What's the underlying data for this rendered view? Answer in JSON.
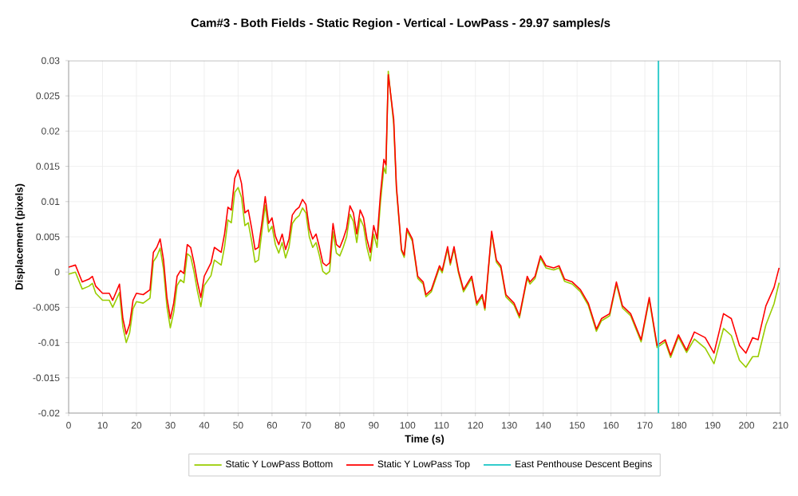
{
  "chart_data": {
    "type": "line",
    "title": "Cam#3 - Both Fields - Static Region - Vertical - LowPass - 29.97 samples/s",
    "xlabel": "Time (s)",
    "ylabel": "Displacement (pixels)",
    "x": [
      0,
      2,
      3,
      4,
      6,
      7,
      8,
      10,
      12,
      13,
      15,
      16,
      17,
      18,
      19,
      20,
      22,
      24,
      25,
      26,
      27,
      28,
      29,
      30,
      31,
      32,
      33,
      34,
      35,
      36,
      37,
      38,
      39,
      40,
      42,
      43,
      45,
      46,
      47,
      48,
      49,
      50,
      51,
      52,
      53,
      54,
      55,
      56,
      57,
      58,
      59,
      60,
      61,
      62,
      63,
      64,
      65,
      66,
      67,
      68,
      69,
      70,
      71,
      72,
      73,
      74,
      75,
      76,
      77,
      78,
      79,
      80,
      81,
      82,
      83,
      84,
      85,
      86,
      87,
      88,
      89,
      90,
      91,
      92,
      93,
      93.6,
      94.3,
      95.9,
      96.7,
      98.2,
      99,
      99.8,
      101.4,
      103,
      104.6,
      105.4,
      107,
      109.4,
      110.2,
      111.8,
      112.6,
      113.7,
      115,
      116.5,
      118.9,
      120.4,
      122,
      122.8,
      124.8,
      126.2,
      127.5,
      129,
      131.4,
      133,
      135.3,
      136.1,
      137.6,
      139.2,
      140.8,
      143.1,
      144.7,
      146.3,
      148.6,
      151,
      153.3,
      155.7,
      157.2,
      159.6,
      161.6,
      163.4,
      165.8,
      168.9,
      171.3,
      173.6,
      176,
      177.6,
      179.9,
      182.3,
      184.6,
      187.8,
      190.4,
      193.2,
      195.5,
      197.9,
      199.8,
      201.8,
      203.4,
      205.7,
      208.1,
      209.6
    ],
    "series": [
      {
        "name": "Static Y LowPass Bottom",
        "color": "#99cc00",
        "values": [
          -0.0003,
          0,
          -0.0012,
          -0.0024,
          -0.002,
          -0.0016,
          -0.003,
          -0.004,
          -0.004,
          -0.005,
          -0.0029,
          -0.0078,
          -0.01,
          -0.0086,
          -0.0052,
          -0.0042,
          -0.0044,
          -0.0037,
          0.0015,
          0.0022,
          0.0034,
          0.0004,
          -0.0049,
          -0.0079,
          -0.0057,
          -0.0019,
          -0.0011,
          -0.0015,
          0.0026,
          0.0022,
          0,
          -0.0027,
          -0.0049,
          -0.0019,
          -0.0005,
          0.0017,
          0.001,
          0.0036,
          0.0074,
          0.007,
          0.0113,
          0.012,
          0.0106,
          0.0066,
          0.007,
          0.0044,
          0.0014,
          0.0017,
          0.0057,
          0.0095,
          0.0057,
          0.0065,
          0.0039,
          0.0027,
          0.0042,
          0.002,
          0.0035,
          0.0069,
          0.0076,
          0.008,
          0.0091,
          0.0084,
          0.005,
          0.0035,
          0.0042,
          0.0023,
          0.0001,
          -0.0003,
          0.0001,
          0.0057,
          0.0027,
          0.0023,
          0.0035,
          0.005,
          0.0082,
          0.0072,
          0.0042,
          0.0076,
          0.0065,
          0.0035,
          0.0016,
          0.0054,
          0.0035,
          0.0099,
          0.0148,
          0.014,
          0.0285,
          0.021,
          0.0118,
          0.003,
          0.0021,
          0.0059,
          0.0044,
          -0.0009,
          -0.0017,
          -0.0035,
          -0.0028,
          0.0006,
          -0.0001,
          0.0033,
          0.001,
          0.0033,
          -0.0001,
          -0.0028,
          -0.0009,
          -0.0047,
          -0.0035,
          -0.0054,
          0.0055,
          0.0014,
          0.0006,
          -0.0035,
          -0.0047,
          -0.0065,
          -0.0009,
          -0.0017,
          -0.0009,
          0.002,
          0.0006,
          0.0003,
          0.0006,
          -0.0013,
          -0.0017,
          -0.0028,
          -0.0047,
          -0.0084,
          -0.0069,
          -0.0062,
          -0.0017,
          -0.0051,
          -0.0062,
          -0.0099,
          -0.0039,
          -0.0107,
          -0.0099,
          -0.0121,
          -0.0092,
          -0.0114,
          -0.0095,
          -0.0108,
          -0.013,
          -0.008,
          -0.009,
          -0.0125,
          -0.0135,
          -0.012,
          -0.012,
          -0.0075,
          -0.0045,
          -0.0015
        ]
      },
      {
        "name": "Static Y LowPass Top",
        "color": "#ff0000",
        "values": [
          0.0007,
          0.001,
          -0.0002,
          -0.0014,
          -0.001,
          -0.0006,
          -0.002,
          -0.003,
          -0.003,
          -0.004,
          -0.0017,
          -0.0066,
          -0.0088,
          -0.0074,
          -0.004,
          -0.003,
          -0.0032,
          -0.0025,
          0.0028,
          0.0035,
          0.0047,
          0.0017,
          -0.0036,
          -0.0066,
          -0.0044,
          -0.0006,
          0.0002,
          -0.0002,
          0.0039,
          0.0035,
          0.0013,
          -0.0014,
          -0.0036,
          -0.0006,
          0.0013,
          0.0035,
          0.0028,
          0.0054,
          0.0092,
          0.0088,
          0.0133,
          0.0145,
          0.0126,
          0.0084,
          0.0088,
          0.0062,
          0.0032,
          0.0035,
          0.0069,
          0.0107,
          0.0069,
          0.0077,
          0.0051,
          0.0039,
          0.0054,
          0.0032,
          0.0047,
          0.0081,
          0.0088,
          0.0092,
          0.0103,
          0.0096,
          0.0062,
          0.0047,
          0.0054,
          0.0035,
          0.0013,
          0.0009,
          0.0013,
          0.0069,
          0.0039,
          0.0035,
          0.0047,
          0.0062,
          0.0094,
          0.0084,
          0.0054,
          0.0088,
          0.0077,
          0.0047,
          0.0028,
          0.0066,
          0.0047,
          0.0111,
          0.016,
          0.0152,
          0.028,
          0.0217,
          0.0122,
          0.0032,
          0.0024,
          0.0062,
          0.0047,
          -0.0006,
          -0.0014,
          -0.0032,
          -0.0025,
          0.0009,
          0.0002,
          0.0036,
          0.0013,
          0.0036,
          0.0002,
          -0.0025,
          -0.0006,
          -0.0044,
          -0.0032,
          -0.0051,
          0.0058,
          0.0017,
          0.0009,
          -0.0032,
          -0.0044,
          -0.0062,
          -0.0006,
          -0.0014,
          -0.0006,
          0.0023,
          0.0009,
          0.0006,
          0.0009,
          -0.001,
          -0.0014,
          -0.0025,
          -0.0044,
          -0.0081,
          -0.0066,
          -0.0059,
          -0.0014,
          -0.0048,
          -0.0059,
          -0.0096,
          -0.0036,
          -0.0104,
          -0.0096,
          -0.0118,
          -0.0089,
          -0.0111,
          -0.0085,
          -0.0093,
          -0.0115,
          -0.0059,
          -0.0066,
          -0.0104,
          -0.0115,
          -0.0093,
          -0.0096,
          -0.0048,
          -0.0022,
          0.0006
        ]
      }
    ],
    "ref_lines": [
      {
        "axis": "x",
        "value": 174,
        "label": "East Penthouse Descent Begins",
        "color": "#33cccc"
      }
    ],
    "xlim": [
      0,
      210
    ],
    "xticks": [
      0,
      10,
      20,
      30,
      40,
      50,
      60,
      70,
      80,
      90,
      100,
      110,
      120,
      130,
      140,
      150,
      160,
      170,
      180,
      190,
      200,
      210
    ],
    "ylim": [
      -0.02,
      0.03
    ],
    "yticks": [
      -0.02,
      -0.015,
      -0.01,
      -0.005,
      0,
      0.005,
      0.01,
      0.015,
      0.02,
      0.025,
      0.03
    ],
    "grid": true,
    "legend": "bottom",
    "marker": "none",
    "line_style": "solid"
  }
}
